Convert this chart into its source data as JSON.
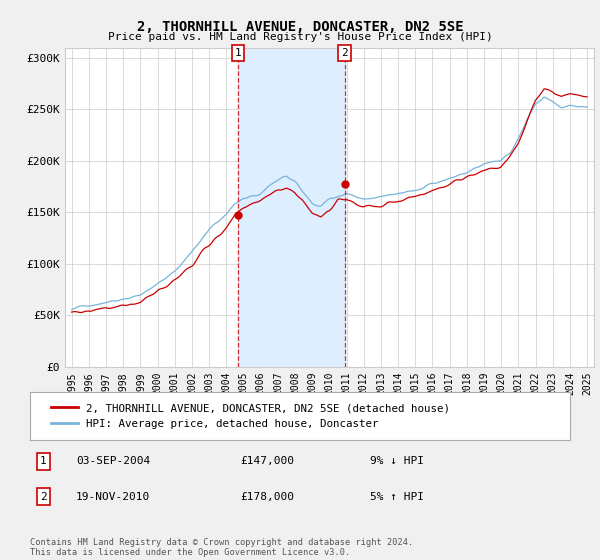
{
  "title": "2, THORNHILL AVENUE, DONCASTER, DN2 5SE",
  "subtitle": "Price paid vs. HM Land Registry's House Price Index (HPI)",
  "bg_color": "#f0f0f0",
  "plot_bg_color": "#ffffff",
  "hpi_color": "#7ab3d9",
  "price_color": "#cc0000",
  "shade_color": "#ddeeff",
  "sale1_x": 2004.67,
  "sale1_price": 147000,
  "sale1_date": "03-SEP-2004",
  "sale1_pct": "9%",
  "sale1_dir": "↓",
  "sale2_x": 2010.88,
  "sale2_price": 178000,
  "sale2_date": "19-NOV-2010",
  "sale2_pct": "5%",
  "sale2_dir": "↑",
  "legend_label_price": "2, THORNHILL AVENUE, DONCASTER, DN2 5SE (detached house)",
  "legend_label_hpi": "HPI: Average price, detached house, Doncaster",
  "footer": "Contains HM Land Registry data © Crown copyright and database right 2024.\nThis data is licensed under the Open Government Licence v3.0.",
  "yticks": [
    0,
    50000,
    100000,
    150000,
    200000,
    250000,
    300000
  ],
  "ytick_labels": [
    "£0",
    "£50K",
    "£100K",
    "£150K",
    "£200K",
    "£250K",
    "£300K"
  ],
  "xstart": 1995.0,
  "xend": 2025.0
}
